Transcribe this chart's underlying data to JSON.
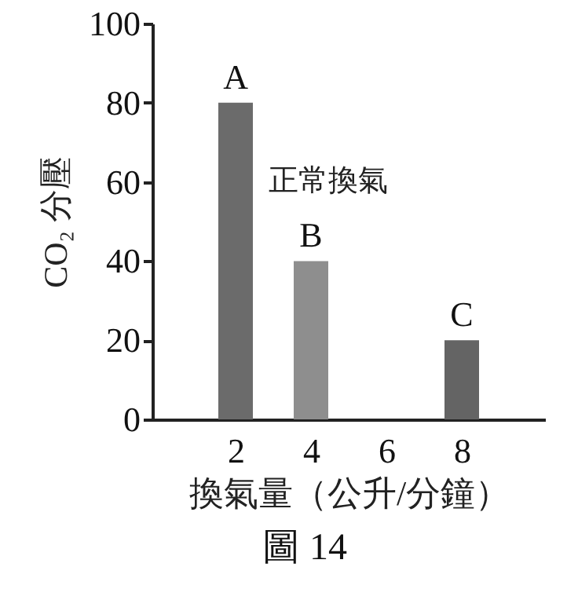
{
  "chart_data": {
    "type": "bar",
    "title": "圖 14",
    "xlabel": "換氣量（公升/分鐘）",
    "ylabel": "CO₂ 分壓",
    "x": [
      2,
      4,
      8
    ],
    "values": [
      80,
      40,
      20
    ],
    "colors": [
      "#6b6b6b",
      "#8e8e8e",
      "#646464"
    ],
    "value_labels": [
      "A",
      "B",
      "C"
    ],
    "annotations": [
      "正常換氣"
    ],
    "xlim": [
      0,
      10
    ],
    "xticks": [
      2,
      4,
      6,
      8
    ],
    "ylim": [
      0,
      100
    ],
    "yticks": [
      0,
      20,
      40,
      60,
      80,
      100
    ]
  }
}
